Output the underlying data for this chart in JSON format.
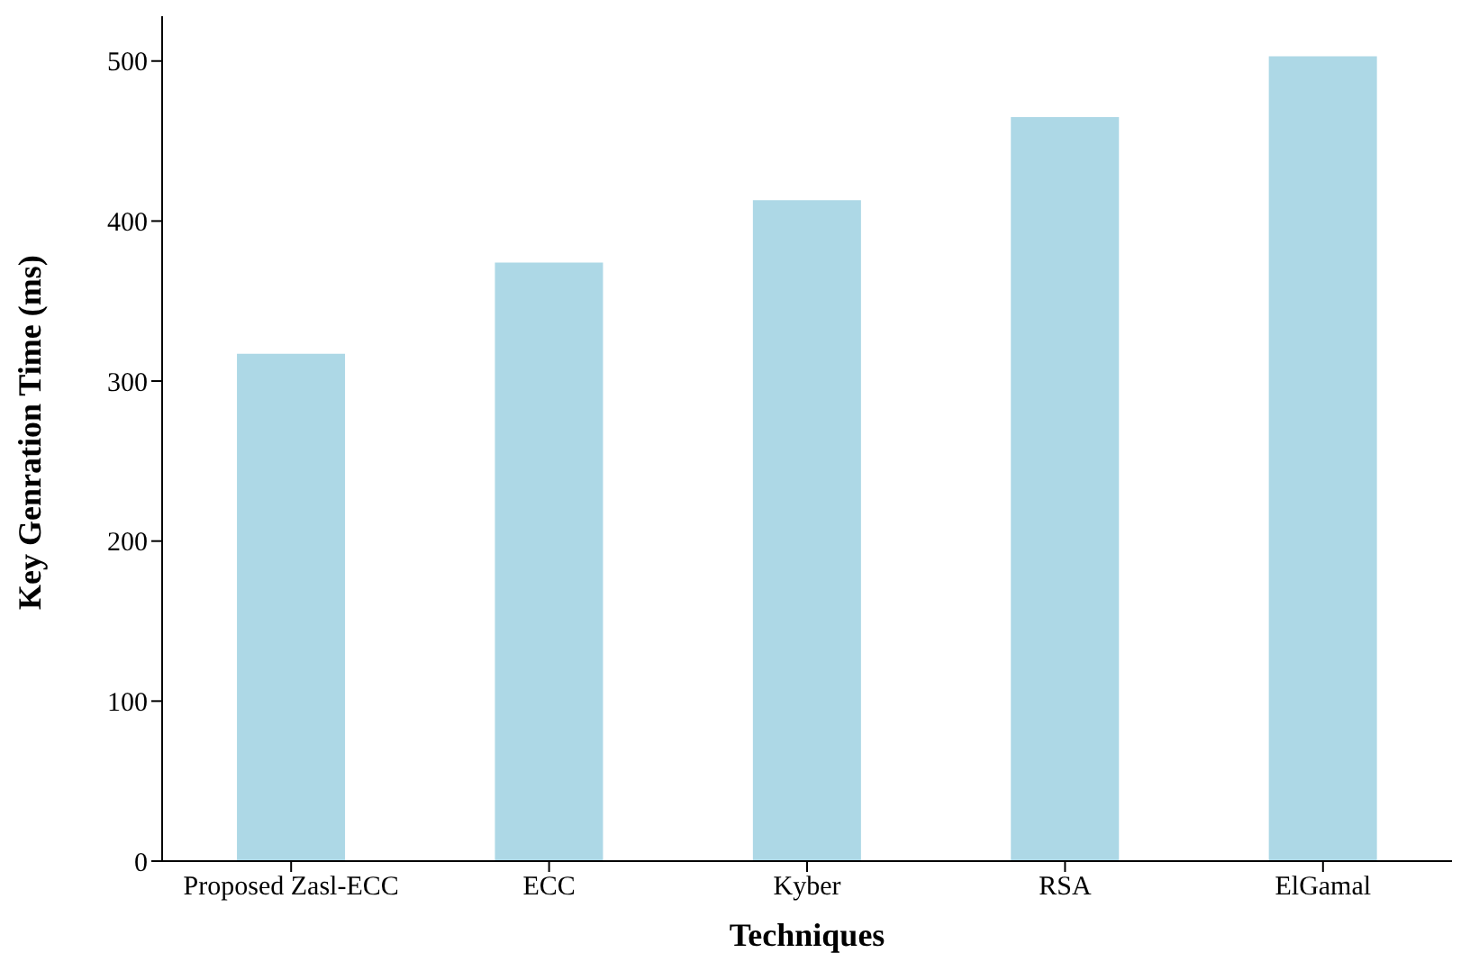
{
  "chart_data": {
    "type": "bar",
    "xlabel": "Techniques",
    "ylabel": "Key Genration Time (ms)",
    "categories": [
      "Proposed Zasl-ECC",
      "ECC",
      "Kyber",
      "RSA",
      "ElGamal"
    ],
    "values": [
      317,
      374,
      413,
      465,
      503
    ],
    "color": "#add8e6",
    "ylim": [
      0,
      528
    ],
    "yticks": [
      0,
      100,
      200,
      300,
      400,
      500
    ],
    "grid": false,
    "legend": false
  }
}
